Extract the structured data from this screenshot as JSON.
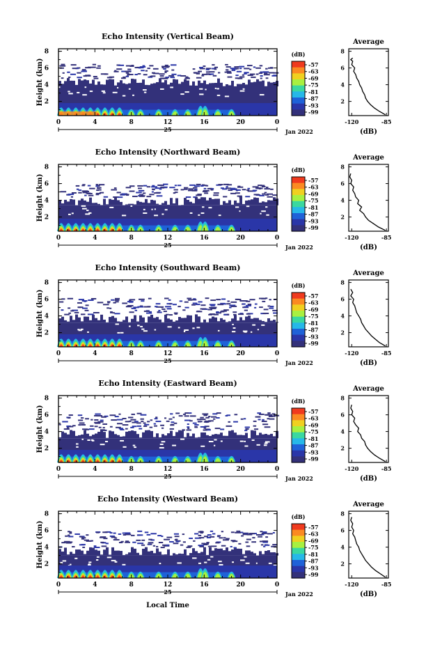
{
  "chart_data": [
    {
      "type": "heatmap",
      "title": "Echo Intensity (Vertical Beam)",
      "ylabel": "Height (km)",
      "yticks": [
        "2",
        "4",
        "6",
        "8"
      ],
      "xticks": [
        "0",
        "4",
        "8",
        "12",
        "16",
        "20",
        "0"
      ],
      "date_day": "25",
      "date_label": "Jan 2022",
      "ylim": [
        0.3,
        8.3
      ],
      "xlim": [
        0,
        24
      ],
      "colorbar": {
        "unit": "(dB)",
        "ticks": [
          "-57",
          "-63",
          "-69",
          "-75",
          "-81",
          "-87",
          "-93",
          "-99"
        ]
      },
      "profile": {
        "title": "Average",
        "xlabel": "(dB)",
        "xticks": [
          "-120",
          "-85"
        ],
        "yticks": [
          "2",
          "4",
          "6",
          "8"
        ],
        "xlim": [
          -123,
          -83
        ],
        "ylim": [
          0.3,
          8.3
        ],
        "height": [
          0.4,
          0.8,
          1.2,
          1.6,
          2.0,
          2.4,
          2.8,
          3.2,
          3.6,
          4.0,
          4.4,
          4.8,
          5.2,
          5.6,
          6.0,
          6.4,
          6.8,
          7.0,
          7.2
        ],
        "value": [
          -86,
          -92,
          -97,
          -101,
          -104,
          -106,
          -107,
          -109,
          -110,
          -112,
          -113,
          -115,
          -116,
          -118,
          -117,
          -120,
          -119,
          -121,
          -119
        ]
      },
      "layers": {
        "top_sparse": 6.5,
        "solid_top": 3.8
      }
    },
    {
      "type": "heatmap",
      "title": "Echo Intensity (Northward Beam)",
      "ylabel": "Height (km)",
      "yticks": [
        "2",
        "4",
        "6",
        "8"
      ],
      "xticks": [
        "0",
        "4",
        "8",
        "12",
        "16",
        "20",
        "0"
      ],
      "date_day": "25",
      "date_label": "Jan 2022",
      "ylim": [
        0.3,
        8.3
      ],
      "xlim": [
        0,
        24
      ],
      "colorbar": {
        "unit": "(dB)",
        "ticks": [
          "-57",
          "-63",
          "-69",
          "-75",
          "-81",
          "-87",
          "-93",
          "-99"
        ]
      },
      "profile": {
        "title": "Average",
        "xlabel": "(dB)",
        "xticks": [
          "-120",
          "-85"
        ],
        "yticks": [
          "2",
          "4",
          "6",
          "8"
        ],
        "xlim": [
          -123,
          -83
        ],
        "ylim": [
          0.3,
          8.3
        ],
        "height": [
          0.4,
          0.8,
          1.2,
          1.6,
          2.0,
          2.4,
          2.8,
          3.2,
          3.6,
          4.0,
          4.4,
          4.8,
          5.2,
          5.6,
          6.0,
          6.4,
          6.8,
          7.2
        ],
        "value": [
          -86,
          -93,
          -98,
          -103,
          -106,
          -108,
          -112,
          -110,
          -114,
          -113,
          -116,
          -117,
          -119,
          -118,
          -121,
          -120,
          -122,
          -121
        ]
      },
      "layers": {
        "top_sparse": 6.0,
        "solid_top": 3.4
      }
    },
    {
      "type": "heatmap",
      "title": "Echo Intensity (Southward Beam)",
      "ylabel": "Height (km)",
      "yticks": [
        "2",
        "4",
        "6",
        "8"
      ],
      "xticks": [
        "0",
        "4",
        "8",
        "12",
        "16",
        "20",
        "0"
      ],
      "date_day": "25",
      "date_label": "Jan 2022",
      "ylim": [
        0.3,
        8.3
      ],
      "xlim": [
        0,
        24
      ],
      "colorbar": {
        "unit": "(dB)",
        "ticks": [
          "-57",
          "-63",
          "-69",
          "-75",
          "-81",
          "-87",
          "-93",
          "-99"
        ]
      },
      "profile": {
        "title": "Average",
        "xlabel": "(dB)",
        "xticks": [
          "-120",
          "-85"
        ],
        "yticks": [
          "2",
          "4",
          "6",
          "8"
        ],
        "xlim": [
          -123,
          -83
        ],
        "ylim": [
          0.3,
          8.3
        ],
        "height": [
          0.4,
          0.8,
          1.2,
          1.6,
          2.0,
          2.4,
          2.8,
          3.2,
          3.6,
          4.0,
          4.4,
          4.8,
          5.2,
          5.6,
          6.0,
          6.4,
          6.8,
          7.2
        ],
        "value": [
          -86,
          -92,
          -96,
          -100,
          -103,
          -106,
          -108,
          -110,
          -111,
          -113,
          -115,
          -116,
          -117,
          -119,
          -118,
          -121,
          -119,
          -121
        ]
      },
      "layers": {
        "top_sparse": 6.2,
        "solid_top": 3.2
      }
    },
    {
      "type": "heatmap",
      "title": "Echo Intensity (Eastward Beam)",
      "ylabel": "Height (km)",
      "yticks": [
        "2",
        "4",
        "6",
        "8"
      ],
      "xticks": [
        "0",
        "4",
        "8",
        "12",
        "16",
        "20",
        "0"
      ],
      "date_day": "25",
      "date_label": "Jan 2022",
      "ylim": [
        0.3,
        8.3
      ],
      "xlim": [
        0,
        24
      ],
      "colorbar": {
        "unit": "(dB)",
        "ticks": [
          "-57",
          "-63",
          "-69",
          "-75",
          "-81",
          "-87",
          "-93",
          "-99"
        ]
      },
      "profile": {
        "title": "Average",
        "xlabel": "(dB)",
        "xticks": [
          "-120",
          "-85"
        ],
        "yticks": [
          "2",
          "4",
          "6",
          "8"
        ],
        "xlim": [
          -123,
          -83
        ],
        "ylim": [
          0.3,
          8.3
        ],
        "height": [
          0.4,
          0.8,
          1.2,
          1.6,
          2.0,
          2.4,
          2.8,
          3.2,
          3.6,
          4.0,
          4.4,
          4.8,
          5.2,
          5.6,
          6.0,
          6.4,
          6.8,
          7.2
        ],
        "value": [
          -86,
          -92,
          -97,
          -101,
          -104,
          -106,
          -107,
          -110,
          -111,
          -114,
          -113,
          -116,
          -118,
          -117,
          -120,
          -119,
          -121,
          -120
        ]
      },
      "layers": {
        "top_sparse": 6.3,
        "solid_top": 3.2
      }
    },
    {
      "type": "heatmap",
      "title": "Echo Intensity (Westward Beam)",
      "ylabel": "Height (km)",
      "yticks": [
        "2",
        "4",
        "6",
        "8"
      ],
      "xticks": [
        "0",
        "4",
        "8",
        "12",
        "16",
        "20",
        "0"
      ],
      "date_day": "25",
      "date_label": "Jan 2022",
      "xlabel": "Local Time",
      "ylim": [
        0.3,
        8.3
      ],
      "xlim": [
        0,
        24
      ],
      "colorbar": {
        "unit": "(dB)",
        "ticks": [
          "-57",
          "-63",
          "-69",
          "-75",
          "-81",
          "-87",
          "-93",
          "-99"
        ]
      },
      "profile": {
        "title": "Average",
        "xlabel": "(dB)",
        "xticks": [
          "-120",
          "-85"
        ],
        "yticks": [
          "2",
          "4",
          "6",
          "8"
        ],
        "xlim": [
          -123,
          -83
        ],
        "ylim": [
          0.3,
          8.3
        ],
        "height": [
          0.4,
          0.8,
          1.2,
          1.6,
          2.0,
          2.4,
          2.8,
          3.2,
          3.6,
          4.0,
          4.4,
          4.8,
          5.2,
          5.6,
          6.0,
          6.4,
          6.8,
          7.2,
          7.6
        ],
        "value": [
          -86,
          -91,
          -96,
          -100,
          -103,
          -106,
          -108,
          -110,
          -112,
          -113,
          -115,
          -116,
          -117,
          -119,
          -118,
          -120,
          -119,
          -121,
          -120
        ]
      },
      "layers": {
        "top_sparse": 6.0,
        "solid_top": 3.0
      }
    }
  ],
  "colors": {
    "colormap": [
      "#f03a1e",
      "#fb8a22",
      "#f0d020",
      "#a8f040",
      "#3ad8a0",
      "#26b8e8",
      "#1f62d8",
      "#2a36a8",
      "#33317a"
    ],
    "frame": "#000000"
  }
}
